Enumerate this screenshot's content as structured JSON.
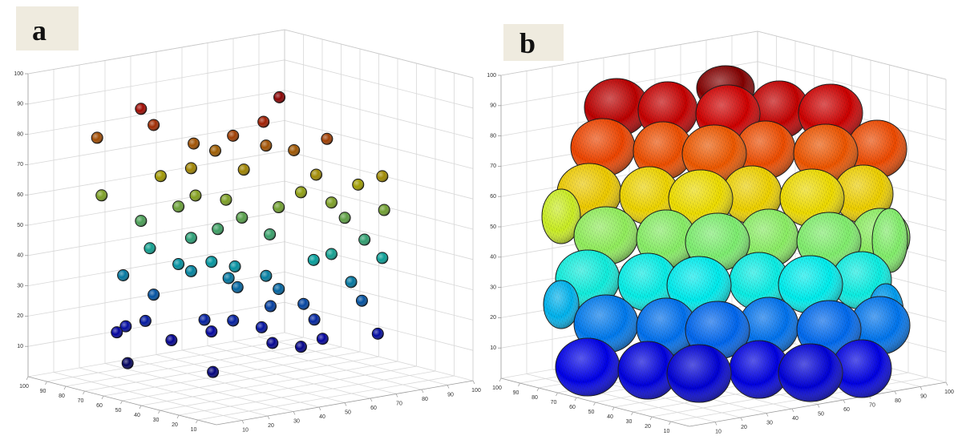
{
  "chart_data": [
    {
      "type": "scatter3d",
      "panel_label": "a",
      "colormap": "jet",
      "grid": true,
      "xlim": [
        0,
        100
      ],
      "ylim": [
        0,
        100
      ],
      "zlim": [
        0,
        100
      ],
      "xticks": [
        10,
        20,
        30,
        40,
        50,
        60,
        70,
        80,
        90,
        100
      ],
      "yticks": [
        10,
        20,
        30,
        40,
        50,
        60,
        70,
        80,
        90,
        100
      ],
      "zticks": [
        10,
        20,
        30,
        40,
        50,
        60,
        70,
        80,
        90,
        100
      ],
      "x": [
        24,
        25,
        33,
        35,
        62,
        58,
        71,
        44,
        48,
        52,
        59,
        64,
        83,
        37,
        43,
        54,
        69,
        78,
        44,
        50,
        66,
        72,
        83,
        33,
        41,
        54,
        61,
        75,
        43,
        49,
        59,
        79,
        35,
        41,
        48,
        52,
        68,
        72,
        83,
        29,
        43,
        51,
        59,
        76,
        35,
        53,
        61,
        78,
        60,
        67,
        30,
        34,
        46,
        52,
        58,
        69,
        28,
        39,
        48,
        60,
        66,
        70,
        82,
        30,
        28
      ],
      "y": [
        96,
        95,
        85,
        81,
        51,
        54,
        38,
        72,
        66,
        62,
        54,
        46,
        25,
        80,
        72,
        59,
        41,
        31,
        71,
        63,
        45,
        37,
        24,
        85,
        76,
        60,
        50,
        34,
        72,
        66,
        52,
        29,
        83,
        76,
        68,
        61,
        41,
        37,
        25,
        89,
        72,
        63,
        54,
        32,
        81,
        61,
        50,
        29,
        53,
        45,
        89,
        84,
        69,
        62,
        55,
        42,
        91,
        77,
        68,
        52,
        45,
        39,
        26,
        88,
        40
      ],
      "z": [
        76,
        57,
        86,
        81,
        91,
        83,
        78,
        75,
        73,
        78,
        75,
        74,
        66,
        64,
        67,
        67,
        66,
        63,
        58,
        57,
        60,
        57,
        55,
        49,
        54,
        51,
        55,
        52,
        44,
        47,
        46,
        45,
        40,
        35,
        36,
        35,
        38,
        40,
        39,
        31,
        33,
        31,
        32,
        31,
        25,
        28,
        28,
        25,
        22,
        23,
        14,
        16,
        17,
        17,
        15,
        18,
        12,
        10,
        13,
        10,
        9,
        12,
        14,
        2,
        7
      ]
    },
    {
      "type": "cells3d",
      "panel_label": "b",
      "colormap": "jet",
      "grid": true,
      "xlim": [
        0,
        100
      ],
      "ylim": [
        0,
        100
      ],
      "zlim": [
        0,
        100
      ],
      "xticks": [
        10,
        20,
        30,
        40,
        50,
        60,
        70,
        80,
        90,
        100
      ],
      "yticks": [
        10,
        20,
        30,
        40,
        50,
        60,
        70,
        80,
        90,
        100
      ],
      "zticks": [
        10,
        20,
        30,
        40,
        50,
        60,
        70,
        80,
        90,
        100
      ]
    }
  ]
}
